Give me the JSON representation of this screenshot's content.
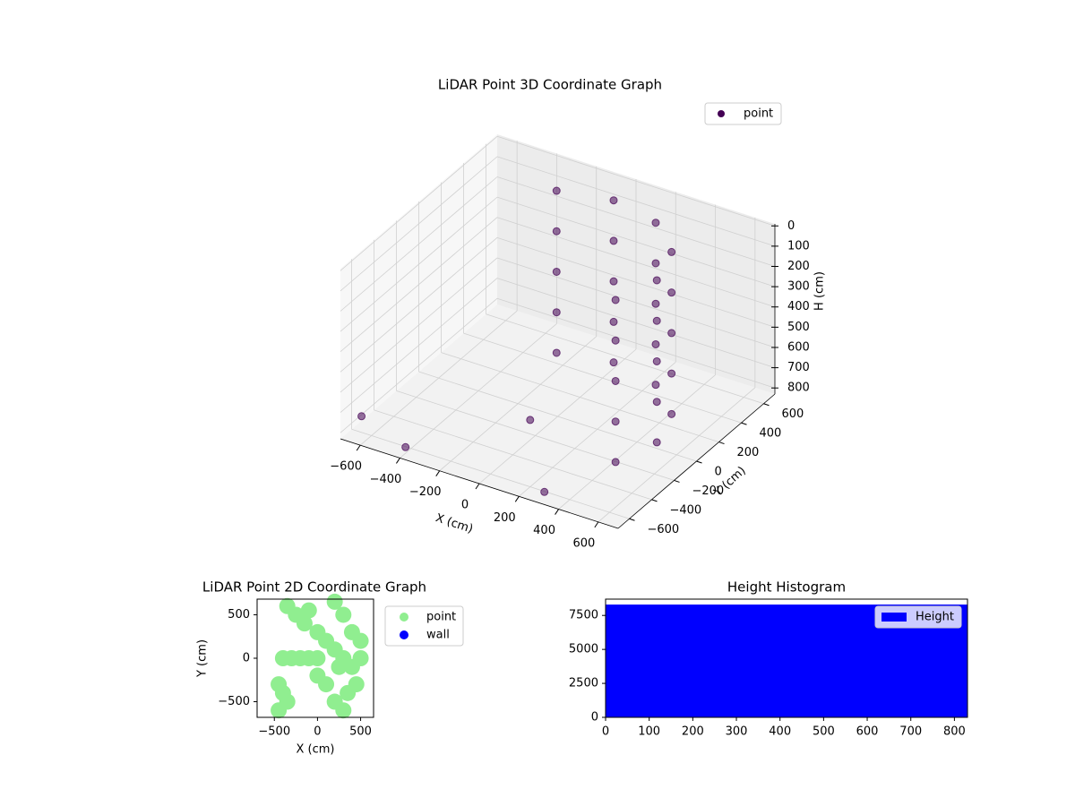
{
  "chart_data": [
    {
      "type": "scatter3d",
      "title": "LiDAR Point 3D Coordinate Graph",
      "xlabel": "X (cm)",
      "ylabel": "Y (cm)",
      "zlabel": "H (cm)",
      "xlim": [
        -700,
        700
      ],
      "ylim": [
        -700,
        700
      ],
      "zlim": [
        830,
        -10
      ],
      "xticks": [
        {
          "value": -600,
          "label": "−600"
        },
        {
          "value": -400,
          "label": "−400"
        },
        {
          "value": -200,
          "label": "−200"
        },
        0,
        200,
        400,
        600
      ],
      "yticks": [
        {
          "value": -600,
          "label": "−600"
        },
        {
          "value": -400,
          "label": "−400"
        },
        {
          "value": -200,
          "label": "−200"
        },
        0,
        200,
        400,
        600
      ],
      "zticks": [
        0,
        100,
        200,
        300,
        400,
        500,
        600,
        700,
        800
      ],
      "grid": true,
      "legend": "upper right",
      "series": [
        {
          "name": "point",
          "color": "#440154",
          "x": [
            433,
            500,
            433,
            250,
            0,
            -250,
            433,
            500,
            433,
            250,
            0,
            -250,
            433,
            500,
            433,
            250,
            0,
            -250,
            433,
            500,
            433,
            250,
            0,
            -250,
            433,
            500,
            433,
            250,
            0,
            -250,
            -650,
            -400,
            300,
            200
          ],
          "y": [
            -250,
            0,
            250,
            433,
            500,
            433,
            -250,
            0,
            250,
            433,
            500,
            433,
            -250,
            0,
            250,
            433,
            500,
            433,
            -250,
            0,
            250,
            433,
            500,
            433,
            -250,
            0,
            250,
            433,
            500,
            433,
            -600,
            -650,
            -650,
            -600
          ],
          "z": [
            0,
            0,
            0,
            0,
            0,
            0,
            200,
            200,
            200,
            200,
            200,
            200,
            400,
            400,
            400,
            400,
            400,
            400,
            600,
            600,
            600,
            600,
            600,
            600,
            800,
            800,
            800,
            800,
            800,
            800,
            750,
            800,
            800,
            500
          ]
        }
      ]
    },
    {
      "type": "scatter",
      "title": "LiDAR Point 2D Coordinate Graph",
      "xlabel": "X (cm)",
      "ylabel": "Y (cm)",
      "xlim": [
        -700,
        650
      ],
      "ylim": [
        -680,
        680
      ],
      "xticks": [
        {
          "value": -500,
          "label": "−500"
        },
        0,
        500
      ],
      "yticks": [
        {
          "value": -500,
          "label": "−500"
        },
        0,
        500
      ],
      "legend": "outside right",
      "series": [
        {
          "name": "point",
          "color": "#90ee90",
          "x": [
            -350,
            -250,
            -150,
            0,
            100,
            200,
            300,
            400,
            450,
            500,
            500,
            400,
            300,
            200,
            -100,
            -400,
            -300,
            -200,
            -100,
            0,
            -450,
            -400,
            -350,
            -450,
            100,
            0,
            200,
            300,
            350,
            250
          ],
          "y": [
            600,
            500,
            400,
            300,
            200,
            100,
            0,
            -100,
            -300,
            200,
            0,
            300,
            500,
            650,
            550,
            0,
            0,
            0,
            0,
            0,
            -300,
            -400,
            -500,
            -600,
            -300,
            -200,
            -500,
            -600,
            -400,
            -100
          ]
        },
        {
          "name": "wall",
          "color": "#0000ff",
          "x": [],
          "y": []
        }
      ]
    },
    {
      "type": "histogram",
      "title": "Height Histogram",
      "xlim": [
        0,
        830
      ],
      "ylim": [
        0,
        8700
      ],
      "xticks": [
        0,
        100,
        200,
        300,
        400,
        500,
        600,
        700,
        800
      ],
      "yticks": [
        0,
        2500,
        5000,
        7500
      ],
      "legend": "upper right",
      "series": [
        {
          "name": "Height",
          "color": "#0000ff",
          "bins": [
            0,
            830
          ],
          "counts": [
            8300
          ]
        }
      ]
    }
  ]
}
